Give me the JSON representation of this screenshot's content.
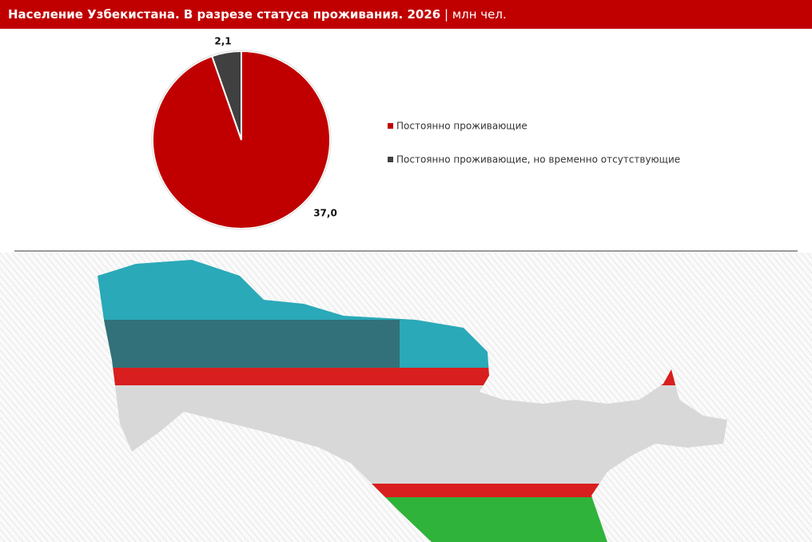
{
  "chart_data": {
    "type": "pie",
    "title": "Население Узбекистана. В разрезе статуса проживания. 2026",
    "unit": "млн чел.",
    "categories": [
      "Постоянно проживающие",
      "Постоянно проживающие, но временно отсутствующие"
    ],
    "values": [
      37.0,
      2.1
    ],
    "value_labels": [
      "37,0",
      "2,1"
    ],
    "colors": [
      "#c00000",
      "#404040"
    ],
    "legend": "right"
  }
}
